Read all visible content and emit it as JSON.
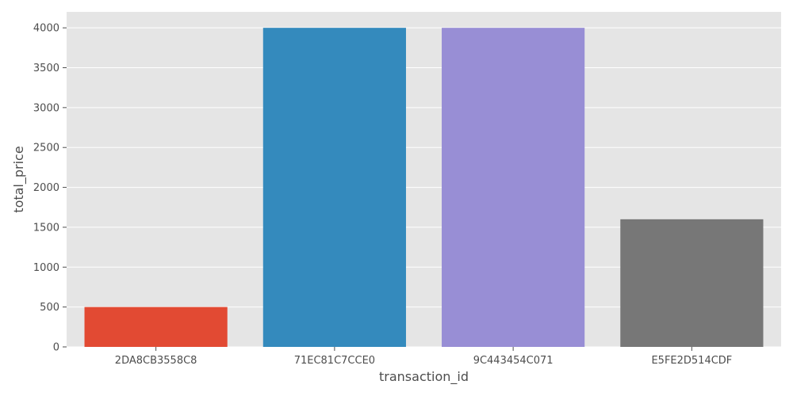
{
  "chart_data": {
    "type": "bar",
    "title": "",
    "xlabel": "transaction_id",
    "ylabel": "total_price",
    "categories": [
      "2DA8CB3558C8",
      "71EC81C7CCE0",
      "9C443454C071",
      "E5FE2D514CDF"
    ],
    "values": [
      500,
      4000,
      4000,
      1600
    ],
    "ylim": [
      0,
      4200
    ],
    "yticks": [
      0,
      500,
      1000,
      1500,
      2000,
      2500,
      3000,
      3500,
      4000
    ],
    "grid": true,
    "bar_colors": [
      "#e24a33",
      "#348abd",
      "#988ed5",
      "#777777"
    ],
    "plot_background": "#e5e5e5",
    "grid_color": "#ffffff",
    "text_color": "#4d4d4d"
  }
}
